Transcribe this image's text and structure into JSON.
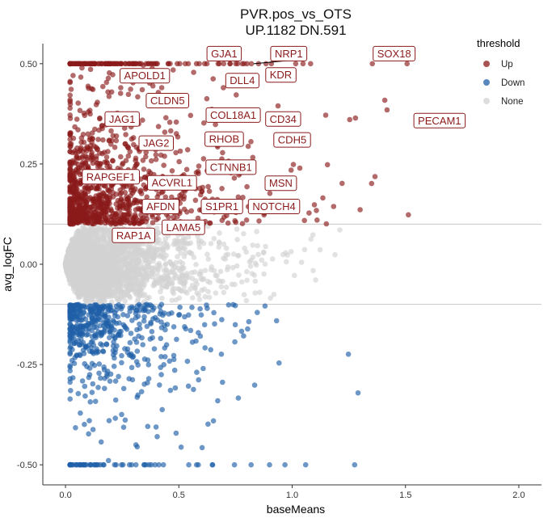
{
  "chart_data": {
    "type": "scatter",
    "title": "PVR.pos_vs_OTS",
    "subtitle": "UP.1182 DN.591",
    "xlabel": "baseMeans",
    "ylabel": "avg_logFC",
    "xlim": [
      -0.1,
      2.1
    ],
    "ylim": [
      -0.55,
      0.55
    ],
    "x_ticks": [
      0.0,
      0.5,
      1.0,
      1.5,
      2.0
    ],
    "x_tick_labels": [
      "0.0",
      "0.5",
      "1.0",
      "1.5",
      "2.0"
    ],
    "y_ticks": [
      -0.5,
      -0.25,
      0.0,
      0.25,
      0.5
    ],
    "y_tick_labels": [
      "-0.50",
      "-0.25",
      "0.00",
      "0.25",
      "0.50"
    ],
    "thresholds": [
      0.1,
      -0.1
    ],
    "grid": false,
    "legend": {
      "title": "threshold",
      "placement": "top-right",
      "entries": [
        {
          "label": "Up",
          "color": "#8b1a1a"
        },
        {
          "label": "Down",
          "color": "#1f5fa8"
        },
        {
          "label": "None",
          "color": "#d3d3d3"
        }
      ]
    },
    "colors": {
      "Up": "#8b1a1a",
      "Down": "#1f5fa8",
      "None": "#d3d3d3"
    },
    "point_alpha": 0.65,
    "labeled_genes": [
      {
        "gene": "GJA1",
        "x": 0.7,
        "y": 0.5
      },
      {
        "gene": "NRP1",
        "x": 0.83,
        "y": 0.5
      },
      {
        "gene": "SOX18",
        "x": 1.4,
        "y": 0.5
      },
      {
        "gene": "APOLD1",
        "x": 0.35,
        "y": 0.47
      },
      {
        "gene": "KDR",
        "x": 0.92,
        "y": 0.48
      },
      {
        "gene": "DLL4",
        "x": 0.8,
        "y": 0.46
      },
      {
        "gene": "CLDN5",
        "x": 0.45,
        "y": 0.41
      },
      {
        "gene": "COL18A1",
        "x": 0.78,
        "y": 0.37
      },
      {
        "gene": "JAG1",
        "x": 0.25,
        "y": 0.36
      },
      {
        "gene": "CD34",
        "x": 0.96,
        "y": 0.36
      },
      {
        "gene": "PECAM1",
        "x": 1.65,
        "y": 0.34
      },
      {
        "gene": "RHOB",
        "x": 0.7,
        "y": 0.31
      },
      {
        "gene": "CDH5",
        "x": 1.0,
        "y": 0.3
      },
      {
        "gene": "JAG2",
        "x": 0.4,
        "y": 0.3
      },
      {
        "gene": "CTNNB1",
        "x": 0.72,
        "y": 0.24
      },
      {
        "gene": "RAPGEF1",
        "x": 0.2,
        "y": 0.22
      },
      {
        "gene": "ACVRL1",
        "x": 0.45,
        "y": 0.21
      },
      {
        "gene": "MSN",
        "x": 0.95,
        "y": 0.2
      },
      {
        "gene": "AFDN",
        "x": 0.4,
        "y": 0.15
      },
      {
        "gene": "S1PR1",
        "x": 0.65,
        "y": 0.15
      },
      {
        "gene": "NOTCH4",
        "x": 0.9,
        "y": 0.15
      },
      {
        "gene": "LAMA5",
        "x": 0.5,
        "y": 0.1
      },
      {
        "gene": "RAP1A",
        "x": 0.3,
        "y": 0.08
      }
    ],
    "label_positions": {
      "GJA1": [
        0.7,
        0.525
      ],
      "NRP1": [
        0.985,
        0.525
      ],
      "SOX18": [
        1.45,
        0.525
      ],
      "APOLD1": [
        0.35,
        0.47
      ],
      "KDR": [
        0.95,
        0.472
      ],
      "DLL4": [
        0.78,
        0.458
      ],
      "CLDN5": [
        0.45,
        0.408
      ],
      "COL18A1": [
        0.74,
        0.372
      ],
      "JAG1": [
        0.25,
        0.362
      ],
      "CD34": [
        0.96,
        0.362
      ],
      "PECAM1": [
        1.65,
        0.358
      ],
      "RHOB": [
        0.7,
        0.312
      ],
      "CDH5": [
        1.0,
        0.31
      ],
      "JAG2": [
        0.4,
        0.302
      ],
      "CTNNB1": [
        0.73,
        0.242
      ],
      "RAPGEF1": [
        0.2,
        0.218
      ],
      "ACVRL1": [
        0.47,
        0.203
      ],
      "MSN": [
        0.95,
        0.202
      ],
      "AFDN": [
        0.42,
        0.144
      ],
      "S1PR1": [
        0.69,
        0.144
      ],
      "NOTCH4": [
        0.92,
        0.144
      ],
      "LAMA5": [
        0.52,
        0.092
      ],
      "RAP1A": [
        0.3,
        0.072
      ]
    },
    "connector_lines": [
      {
        "gene": "NRP1",
        "from": [
          0.985,
          0.508
        ],
        "to": [
          0.83,
          0.5
        ]
      }
    ],
    "point_clouds": {
      "None": {
        "n": 2600,
        "x_range": [
          0.0,
          2.0
        ],
        "y_band": [
          -0.1,
          0.1
        ]
      },
      "Up": {
        "n": 1182,
        "x_range": [
          0.02,
          2.0
        ],
        "y_range": [
          0.1,
          0.5
        ]
      },
      "Down": {
        "n": 591,
        "x_range": [
          0.02,
          2.0
        ],
        "y_range": [
          -0.5,
          -0.1
        ]
      }
    }
  }
}
